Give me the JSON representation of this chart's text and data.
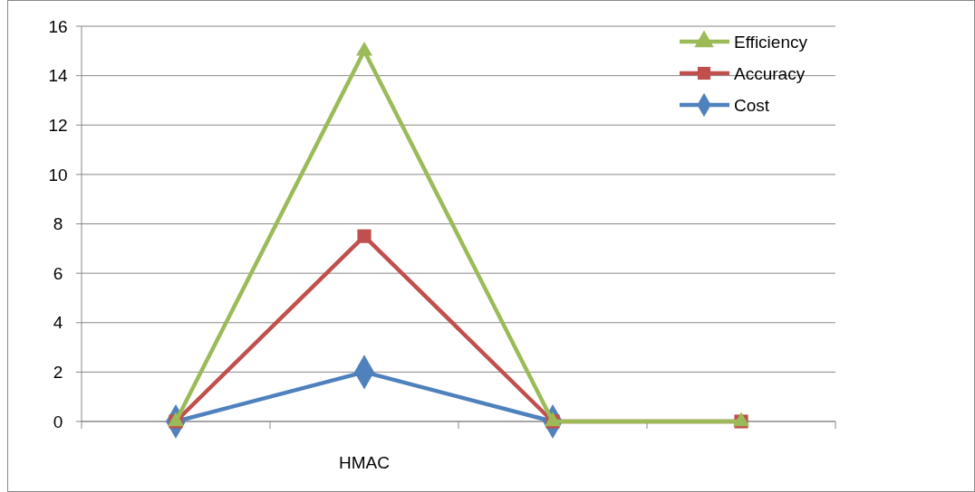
{
  "chart_data": {
    "type": "line",
    "categories": [
      null,
      "HMAC",
      null,
      null
    ],
    "series": [
      {
        "name": "Efficiency",
        "color": "#9bbb59",
        "marker": "triangle",
        "values": [
          0,
          15,
          0,
          0
        ]
      },
      {
        "name": "Accuracy",
        "color": "#c0504d",
        "marker": "square",
        "values": [
          0,
          7.5,
          0,
          0
        ]
      },
      {
        "name": "Cost",
        "color": "#4f81bd",
        "marker": "diamond",
        "values": [
          0,
          2,
          0,
          null
        ]
      }
    ],
    "ylim": [
      0,
      16
    ],
    "yticks": [
      0,
      2,
      4,
      6,
      8,
      10,
      12,
      14,
      16
    ],
    "grid": "y",
    "legend": "top right",
    "line_style": "solid"
  }
}
